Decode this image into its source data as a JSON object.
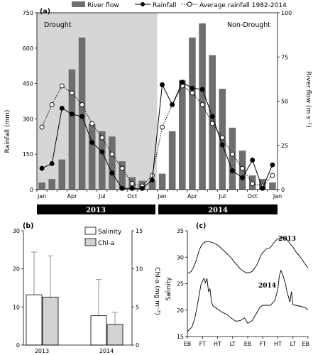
{
  "panel_a": {
    "label": "(a)",
    "legend": {
      "river_flow": "River flow",
      "rainfall": "Rainfall",
      "avg": "Average rainfall 1982-2014"
    },
    "annotations": {
      "drought": "Drought",
      "non_drought": "Non-Drought"
    },
    "year_bars": [
      "2013",
      "2014"
    ],
    "left_ylabel": "Rainfall (mm)",
    "right_ylabel": "River flow (m s⁻¹)"
  },
  "panel_b": {
    "label": "(b)",
    "legend": {
      "salinity": "Salinity",
      "chla": "Chl-a"
    },
    "right_ylabel": "Chl-a (mg m⁻³)"
  },
  "panel_c": {
    "label": "(c)",
    "ylabel": "Salinity",
    "curve_labels": [
      "2013",
      "2014"
    ]
  },
  "colors": {
    "bar": "#6e6e6e",
    "drought_shade": "#d6d6d6",
    "year_bar": "#000000",
    "chla_bar": "#d3d3d3"
  },
  "chart_data": [
    {
      "type": "bar+line",
      "title": "(a)",
      "categories": [
        "Jan",
        "Feb",
        "Mar",
        "Apr",
        "May",
        "Jun",
        "Jul",
        "Aug",
        "Sep",
        "Oct",
        "Nov",
        "Dec",
        "Jan",
        "Feb",
        "Mar",
        "Apr",
        "May",
        "Jun",
        "Jul",
        "Aug",
        "Sep",
        "Oct",
        "Nov",
        "Dec"
      ],
      "x_tick_labels": [
        "Jan",
        "Apr",
        "Jul",
        "Oct",
        "Jan",
        "Apr",
        "Jul",
        "Oct",
        "Jan"
      ],
      "left_ylim": [
        0,
        750
      ],
      "left_yticks": [
        0,
        150,
        300,
        450,
        600,
        750
      ],
      "right_ylim": [
        0,
        100
      ],
      "right_yticks": [
        0,
        25,
        50,
        75,
        100
      ],
      "ylabel": "Rainfall (mm)",
      "y2label": "River flow (m s⁻¹)",
      "drought_months": [
        0,
        11
      ],
      "series": [
        {
          "name": "River flow",
          "axis": "right",
          "kind": "bar",
          "values": [
            4,
            6,
            17,
            68,
            86,
            37,
            33,
            30,
            16,
            7,
            5,
            5,
            9,
            33,
            62,
            86,
            94,
            76,
            57,
            35,
            22,
            8,
            6,
            4
          ]
        },
        {
          "name": "Rainfall",
          "axis": "left",
          "kind": "line",
          "values": [
            90,
            110,
            345,
            320,
            310,
            200,
            160,
            70,
            5,
            5,
            5,
            40,
            445,
            360,
            455,
            430,
            425,
            310,
            190,
            80,
            50,
            125,
            5,
            105
          ]
        },
        {
          "name": "Average rainfall 1982-2014",
          "axis": "left",
          "kind": "line",
          "values": [
            265,
            360,
            440,
            410,
            360,
            280,
            220,
            150,
            90,
            25,
            15,
            60,
            265,
            360,
            440,
            410,
            360,
            280,
            220,
            150,
            90,
            25,
            15,
            60
          ]
        }
      ]
    },
    {
      "type": "bar",
      "title": "(b)",
      "categories": [
        "2013",
        "2014"
      ],
      "left_ylim": [
        0,
        30
      ],
      "left_yticks": [
        0,
        10,
        20,
        30
      ],
      "right_ylim": [
        0,
        15
      ],
      "right_yticks": [
        0,
        5,
        10,
        15
      ],
      "y2label": "Chl-a (mg m⁻³)",
      "series": [
        {
          "name": "Salinity",
          "axis": "left",
          "values": [
            13.2,
            7.7
          ],
          "error": [
            11.2,
            9.5
          ]
        },
        {
          "name": "Chl-a",
          "axis": "right",
          "values": [
            6.3,
            2.7
          ],
          "error": [
            5.4,
            1.6
          ]
        }
      ]
    },
    {
      "type": "line",
      "title": "(c)",
      "x_tick_labels": [
        "EB",
        "FT",
        "HT",
        "LT",
        "EB",
        "FT",
        "HT",
        "LT",
        "EB"
      ],
      "ylim": [
        15,
        35
      ],
      "yticks": [
        15,
        20,
        25,
        30,
        35
      ],
      "ylabel": "Salinity",
      "series": [
        {
          "name": "2013",
          "x": [
            0,
            0.1,
            0.25,
            0.4,
            0.6,
            0.8,
            1.0,
            1.2,
            1.5,
            1.8,
            2.0,
            2.2,
            2.5,
            2.8,
            3.0,
            3.2,
            3.5,
            3.8,
            4.0,
            4.3,
            4.6,
            4.9,
            5.2,
            5.5,
            5.8,
            6.0,
            6.2,
            6.4,
            6.6,
            6.8,
            7.0,
            7.2,
            7.5,
            7.8,
            8.0
          ],
          "values": [
            27,
            27,
            27.3,
            28,
            29.5,
            31.5,
            32.5,
            32.9,
            32.9,
            32.6,
            32.3,
            31.8,
            31,
            30.2,
            29.5,
            28.8,
            27.8,
            27.2,
            27,
            27.3,
            28.5,
            30.5,
            31.5,
            31.8,
            33,
            33.5,
            33.7,
            33.7,
            33.3,
            32.6,
            31.9,
            31,
            30,
            28.7,
            28
          ]
        },
        {
          "name": "2014",
          "x": [
            0,
            0.1,
            0.3,
            0.5,
            0.7,
            0.9,
            1.0,
            1.1,
            1.2,
            1.3,
            1.4,
            1.5,
            1.6,
            1.7,
            1.85,
            2.0,
            2.3,
            2.6,
            2.9,
            3.2,
            3.5,
            3.8,
            4.0,
            4.3,
            4.6,
            4.8,
            5.0,
            5.2,
            5.5,
            5.8,
            6.0,
            6.1,
            6.2,
            6.35,
            6.5,
            6.6,
            6.7,
            6.8,
            6.9,
            7.0,
            7.2,
            7.5,
            7.8,
            8.0
          ],
          "values": [
            16,
            16.2,
            16.8,
            18.5,
            21.5,
            24.8,
            25.5,
            26,
            25.2,
            26,
            23.5,
            24,
            21.5,
            20.8,
            20.5,
            20.2,
            19.6,
            19.2,
            18.5,
            17.9,
            18,
            18.5,
            17.5,
            18,
            19.5,
            20.5,
            20.9,
            20.9,
            20.9,
            21.8,
            24,
            26.5,
            27.5,
            26.5,
            25,
            23.5,
            22.5,
            21.5,
            23.5,
            21,
            20.9,
            20.7,
            20.5,
            20
          ]
        }
      ]
    }
  ]
}
